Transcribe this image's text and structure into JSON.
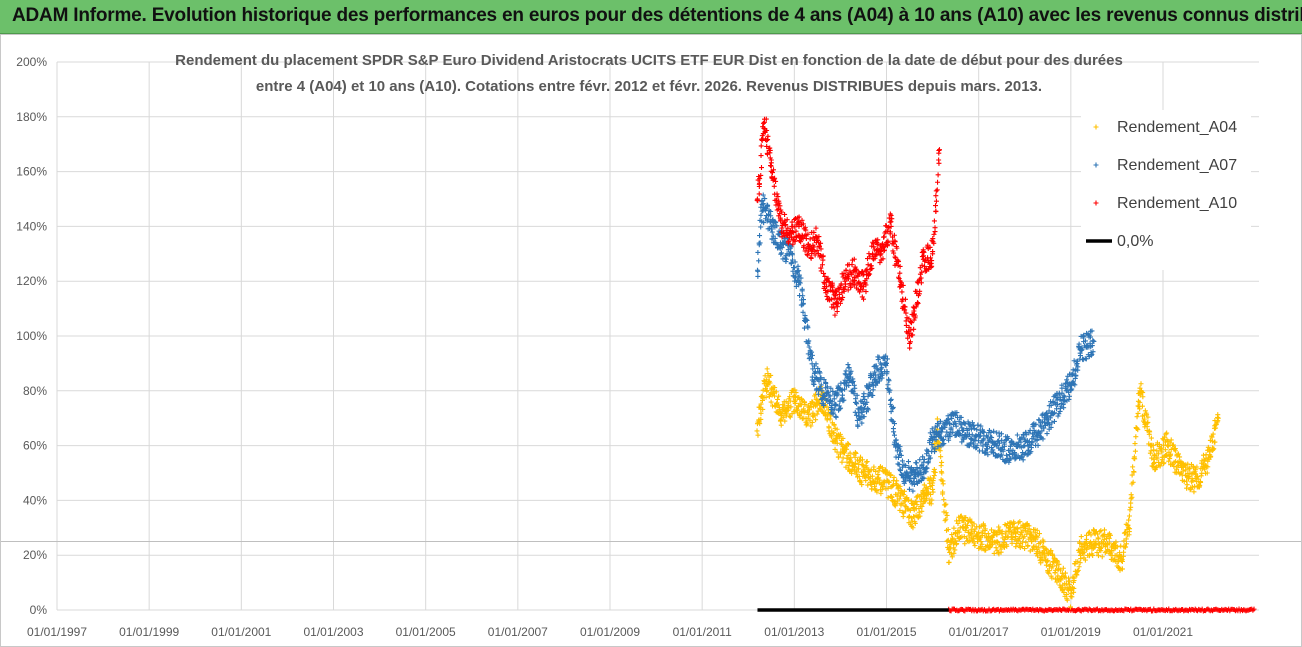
{
  "banner": {
    "title": "ADAM Informe. Evolution historique des performances en euros pour des détentions de 4 ans (A04) à 10 ans (A10) avec les revenus connus distribués"
  },
  "chart_data": {
    "type": "scatter",
    "title_lines": [
      "Rendement du placement SPDR S&P Euro Dividend Aristocrats UCITS ETF EUR Dist en fonction de la date de début pour des durées",
      "entre 4 (A04) et 10 ans (A10).  Cotations entre févr. 2012 et févr. 2026.  Revenus DISTRIBUES depuis mars. 2013."
    ],
    "xlabel": "",
    "ylabel": "",
    "x_range": [
      "1997-01-01",
      "2023-02-01"
    ],
    "ylim": [
      0,
      200
    ],
    "y_ticks": [
      0,
      20,
      40,
      60,
      80,
      100,
      120,
      140,
      160,
      180,
      200
    ],
    "y_tick_labels": [
      "0%",
      "20%",
      "40%",
      "60%",
      "80%",
      "100%",
      "120%",
      "140%",
      "160%",
      "180%",
      "200%"
    ],
    "x_tick_labels": [
      "01/01/1997",
      "01/01/1999",
      "01/01/2001",
      "01/01/2003",
      "01/01/2005",
      "01/01/2007",
      "01/01/2009",
      "01/01/2011",
      "01/01/2013",
      "01/01/2015",
      "01/01/2017",
      "01/01/2019",
      "01/01/2021"
    ],
    "grid": true,
    "reference_line_y": 25,
    "legend_position": "top-right",
    "series": [
      {
        "name": "Rendement_A04",
        "color": "#ffc000",
        "marker": "+",
        "x": [
          2012.2,
          2012.4,
          2012.7,
          2013.0,
          2013.3,
          2013.6,
          2013.9,
          2014.2,
          2014.5,
          2014.8,
          2015.1,
          2015.4,
          2015.6,
          2015.8,
          2016.0,
          2016.1,
          2016.2,
          2016.35,
          2016.6,
          2017.0,
          2017.4,
          2017.8,
          2018.2,
          2018.5,
          2018.8,
          2019.0,
          2019.2,
          2019.5,
          2019.8,
          2020.0,
          2020.1,
          2020.25,
          2020.5,
          2020.8,
          2021.1,
          2021.4,
          2021.7,
          2021.9,
          2022.0,
          2022.2
        ],
        "y": [
          68,
          84,
          72,
          76,
          70,
          78,
          62,
          55,
          50,
          48,
          45,
          38,
          34,
          42,
          44,
          66,
          50,
          22,
          30,
          27,
          25,
          28,
          26,
          18,
          12,
          5,
          22,
          25,
          24,
          20,
          18,
          30,
          80,
          55,
          60,
          50,
          48,
          52,
          55,
          70
        ]
      },
      {
        "name": "Rendement_A07",
        "color": "#2e75b6",
        "marker": "+",
        "x": [
          2012.2,
          2012.3,
          2012.5,
          2012.7,
          2012.9,
          2013.1,
          2013.4,
          2013.6,
          2013.9,
          2014.2,
          2014.4,
          2014.6,
          2014.8,
          2015.0,
          2015.2,
          2015.4,
          2015.6,
          2015.8,
          2016.0,
          2016.2,
          2016.5,
          2016.8,
          2017.1,
          2017.4,
          2017.7,
          2018.0,
          2018.3,
          2018.6,
          2018.9,
          2019.0,
          2019.2,
          2019.5
        ],
        "y": [
          124,
          148,
          140,
          134,
          130,
          120,
          88,
          80,
          75,
          86,
          70,
          78,
          88,
          90,
          60,
          50,
          48,
          52,
          62,
          65,
          68,
          64,
          62,
          60,
          58,
          60,
          65,
          72,
          80,
          82,
          95,
          98
        ]
      },
      {
        "name": "Rendement_A10",
        "color": "#ff0000",
        "marker": "+",
        "x": [
          2012.2,
          2012.35,
          2012.5,
          2012.7,
          2012.9,
          2013.1,
          2013.3,
          2013.5,
          2013.7,
          2013.9,
          2014.1,
          2014.3,
          2014.5,
          2014.7,
          2014.9,
          2015.1,
          2015.3,
          2015.5,
          2015.6,
          2015.8,
          2016.0,
          2016.15
        ],
        "y": [
          150,
          178,
          162,
          142,
          136,
          140,
          132,
          135,
          118,
          112,
          120,
          124,
          118,
          130,
          132,
          140,
          120,
          100,
          108,
          128,
          130,
          168
        ]
      },
      {
        "name": "0,0%",
        "color": "#000000",
        "marker": "line",
        "x": [
          2012.2,
          2016.35
        ],
        "y": [
          0,
          0
        ]
      }
    ]
  }
}
